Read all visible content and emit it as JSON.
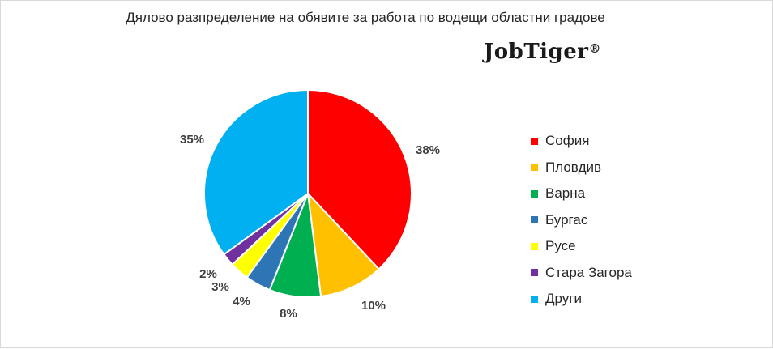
{
  "title": "Дялово разпределение на обявите за работа по водещи областни градове",
  "logo": {
    "text": "JobTiger",
    "mark": "®"
  },
  "chart_data": {
    "type": "pie",
    "title": "Дялово разпределение на обявите за работа по водещи областни градове",
    "legend_position": "right",
    "slices": [
      {
        "label": "София",
        "value": 38,
        "display": "38%",
        "color": "#FF0000"
      },
      {
        "label": "Пловдив",
        "value": 10,
        "display": "10%",
        "color": "#FFC000"
      },
      {
        "label": "Варна",
        "value": 8,
        "display": "8%",
        "color": "#00B050"
      },
      {
        "label": "Бургас",
        "value": 4,
        "display": "4%",
        "color": "#2E75B6"
      },
      {
        "label": "Русе",
        "value": 3,
        "display": "3%",
        "color": "#FFFF00"
      },
      {
        "label": "Стара Загора",
        "value": 2,
        "display": "2%",
        "color": "#7030A0"
      },
      {
        "label": "Други",
        "value": 35,
        "display": "35%",
        "color": "#00B0F0"
      }
    ]
  }
}
